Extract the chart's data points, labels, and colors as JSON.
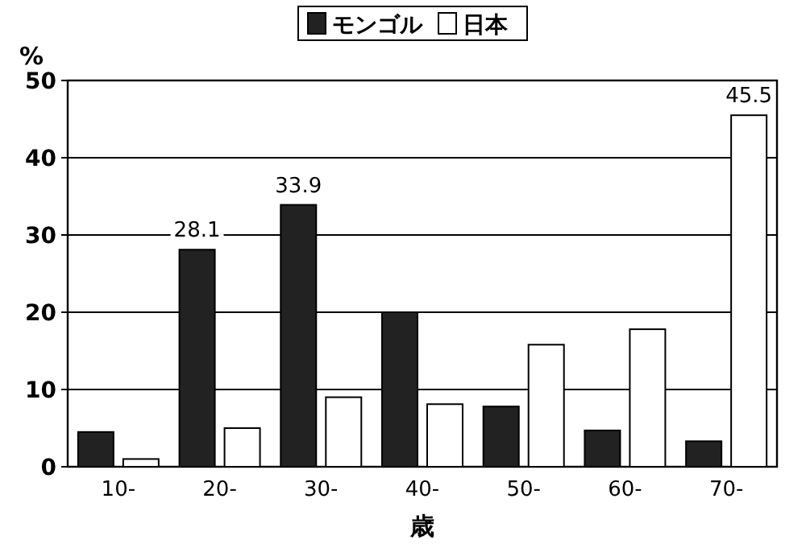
{
  "chart_data": {
    "type": "bar",
    "ylabel": "%",
    "xlabel": "歳",
    "categories": [
      "10-",
      "20-",
      "30-",
      "40-",
      "50-",
      "60-",
      "70-"
    ],
    "series": [
      {
        "name": "モンゴル",
        "color": "#222222",
        "values": [
          4.5,
          28.1,
          33.9,
          20,
          7.8,
          4.7,
          3.3
        ],
        "value_labels": [
          null,
          "28.1",
          "33.9",
          null,
          null,
          null,
          null
        ]
      },
      {
        "name": "日本",
        "color": "#ffffff",
        "values": [
          1,
          5,
          9,
          8.1,
          15.8,
          17.8,
          45.5
        ],
        "value_labels": [
          null,
          null,
          null,
          null,
          null,
          null,
          "45.5"
        ]
      }
    ],
    "ylim": [
      0,
      50
    ],
    "yticks": [
      0,
      10,
      20,
      30,
      40,
      50
    ],
    "grid": "y",
    "legend": "top"
  }
}
